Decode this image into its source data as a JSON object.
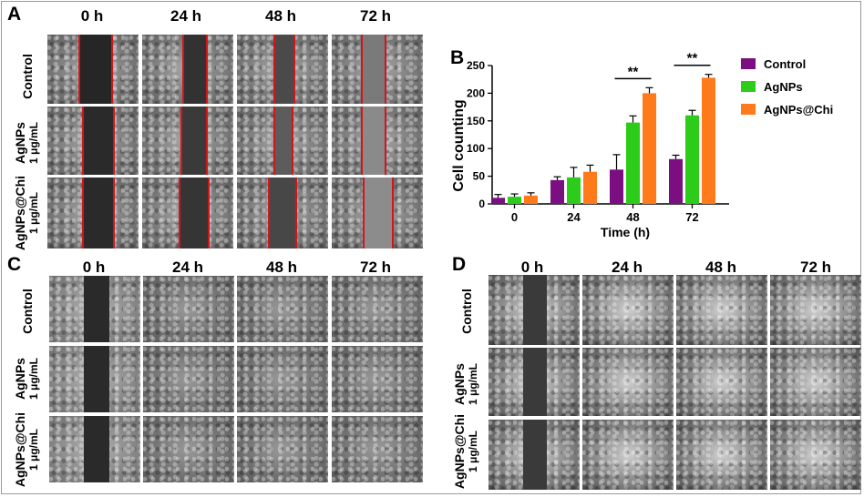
{
  "panels": [
    "A",
    "B",
    "C",
    "D"
  ],
  "time_labels": [
    "0 h",
    "24 h",
    "48 h",
    "72 h"
  ],
  "rows_A": [
    {
      "line1": "Control",
      "line2": ""
    },
    {
      "line1": "AgNPs",
      "line2": "1 μg/mL"
    },
    {
      "line1": "AgNPs@Chi",
      "line2": "1 μg/mL"
    }
  ],
  "rows_C": [
    {
      "line1": "Control",
      "line2": ""
    },
    {
      "line1": "AgNPs",
      "line2": "1 μg/mL"
    },
    {
      "line1": "AgNPs@Chi",
      "line2": "1 μg/mL"
    }
  ],
  "rows_D": [
    {
      "line1": "Control",
      "line2": ""
    },
    {
      "line1": "AgNPs",
      "line2": "1 μg/mL"
    },
    {
      "line1": "AgNPs@Chi",
      "line2": "1 μg/mL"
    }
  ],
  "colors": {
    "control": "#7b0f82",
    "agnps": "#2ecc1a",
    "agnps_chi": "#ff7a1a",
    "redline": "#d2151b"
  },
  "chart_data": {
    "type": "bar",
    "xlabel": "Time  (h)",
    "ylabel": "Cell counting",
    "categories": [
      "0",
      "24",
      "48",
      "72"
    ],
    "ylim": [
      0,
      250
    ],
    "yticks": [
      0,
      50,
      100,
      150,
      200,
      250
    ],
    "legend_position": "right",
    "series": [
      {
        "name": "Control",
        "values": [
          11,
          43,
          62,
          81
        ],
        "errors": [
          6,
          6,
          27,
          7
        ]
      },
      {
        "name": "AgNPs",
        "values": [
          13,
          48,
          147,
          160
        ],
        "errors": [
          5,
          18,
          12,
          9
        ]
      },
      {
        "name": "AgNPs@Chi",
        "values": [
          15,
          58,
          200,
          228
        ],
        "errors": [
          5,
          12,
          10,
          6
        ]
      }
    ],
    "significance": [
      {
        "category": "48",
        "label": "**"
      },
      {
        "category": "72",
        "label": "**"
      }
    ]
  }
}
